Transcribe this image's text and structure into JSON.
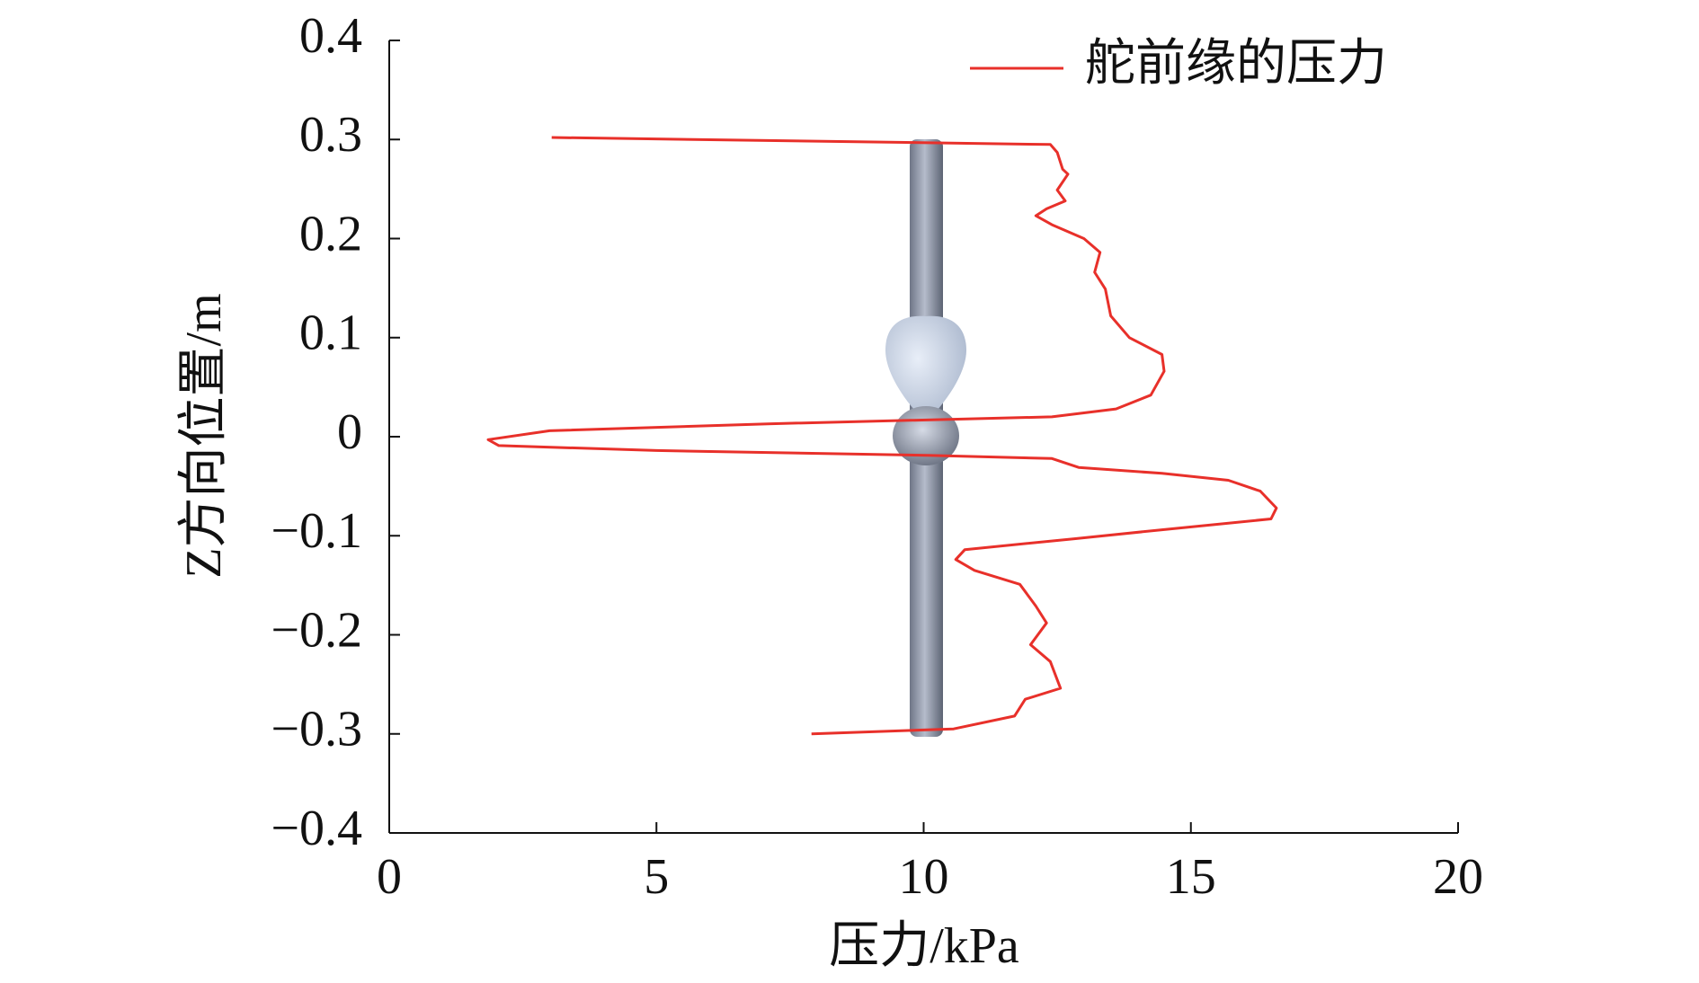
{
  "chart_data": {
    "type": "line",
    "x_label": "压力/kPa",
    "y_label": "Z方向位置/m",
    "xlim": [
      0,
      20
    ],
    "xticks": [
      0,
      5,
      10,
      15,
      20
    ],
    "ylim": [
      -0.4,
      0.4
    ],
    "yticks": [
      {
        "value": -0.4,
        "label": "−0.4"
      },
      {
        "value": -0.3,
        "label": "−0.3"
      },
      {
        "value": -0.2,
        "label": "−0.2"
      },
      {
        "value": -0.1,
        "label": "−0.1"
      },
      0,
      0.1,
      0.2,
      0.3,
      0.4
    ],
    "legend": "upper right",
    "series": [
      {
        "name": "舵前缘的压力",
        "color": "#e8302a",
        "x": [
          3.04,
          12.37,
          12.5,
          12.6,
          12.7,
          12.5,
          12.65,
          12.3,
          12.1,
          12.4,
          13.0,
          13.3,
          13.2,
          13.4,
          13.5,
          13.85,
          14.46,
          14.5,
          14.25,
          13.6,
          12.4,
          7.08,
          3.0,
          1.85,
          2.05,
          5.0,
          10.15,
          12.4,
          12.9,
          14.46,
          15.7,
          16.3,
          16.6,
          16.5,
          14.46,
          12.82,
          10.77,
          10.6,
          10.95,
          11.8,
          12.1,
          12.3,
          12.0,
          12.37,
          12.56,
          11.9,
          11.7,
          10.56,
          7.9
        ],
        "y": [
          0.302,
          0.295,
          0.287,
          0.27,
          0.265,
          0.249,
          0.238,
          0.23,
          0.223,
          0.214,
          0.2,
          0.186,
          0.166,
          0.149,
          0.122,
          0.1,
          0.083,
          0.066,
          0.042,
          0.028,
          0.02,
          0.013,
          0.006,
          -0.003,
          -0.009,
          -0.014,
          -0.019,
          -0.022,
          -0.031,
          -0.037,
          -0.044,
          -0.055,
          -0.072,
          -0.083,
          -0.094,
          -0.103,
          -0.114,
          -0.124,
          -0.135,
          -0.149,
          -0.171,
          -0.188,
          -0.21,
          -0.227,
          -0.254,
          -0.265,
          -0.282,
          -0.295,
          -0.3
        ]
      }
    ]
  }
}
